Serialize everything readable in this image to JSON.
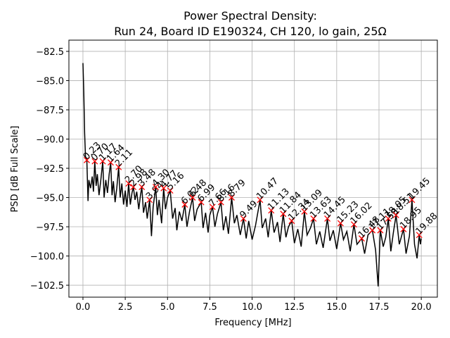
{
  "chart_data": {
    "type": "line",
    "title": [
      "Power Spectral Density:",
      "Run 24, Board ID E190324, CH 120, lo gain, 25Ω"
    ],
    "xlabel": "Frequency [MHz]",
    "ylabel": "PSD [dB Full Scale]",
    "xlim": [
      -0.83,
      20.95
    ],
    "ylim": [
      -103.52,
      -81.54
    ],
    "grid": true,
    "xticks": [
      {
        "value": 0,
        "label": "0.0"
      },
      2.5,
      {
        "value": 5,
        "label": "5.0"
      },
      7.5,
      {
        "value": 10,
        "label": "10.0"
      },
      12.5,
      {
        "value": 15,
        "label": "15.0"
      },
      17.5,
      {
        "value": 20,
        "label": "20.0"
      }
    ],
    "yticks": [
      {
        "value": -82.5,
        "label": "−82.5"
      },
      {
        "value": -85,
        "label": "−85.0"
      },
      {
        "value": -87.5,
        "label": "−87.5"
      },
      {
        "value": -90,
        "label": "−90.0"
      },
      {
        "value": -92.5,
        "label": "−92.5"
      },
      {
        "value": -95,
        "label": "−95.0"
      },
      {
        "value": -97.5,
        "label": "−97.5"
      },
      {
        "value": -100,
        "label": "−100.0"
      },
      {
        "value": -102.5,
        "label": "−102.5"
      }
    ],
    "series": [
      {
        "color": "#000000",
        "x": [
          0.0,
          0.05,
          0.1,
          0.15,
          0.23,
          0.3,
          0.35,
          0.45,
          0.55,
          0.62,
          0.7,
          0.78,
          0.85,
          0.95,
          1.05,
          1.17,
          1.25,
          1.35,
          1.45,
          1.55,
          1.64,
          1.72,
          1.8,
          1.9,
          2.0,
          2.11,
          2.2,
          2.3,
          2.4,
          2.5,
          2.6,
          2.7,
          2.8,
          2.9,
          2.98,
          3.08,
          3.18,
          3.3,
          3.4,
          3.48,
          3.58,
          3.7,
          3.8,
          3.94,
          4.05,
          4.15,
          4.3,
          4.4,
          4.5,
          4.65,
          4.77,
          4.88,
          5.0,
          5.16,
          5.3,
          5.45,
          5.55,
          5.7,
          5.85,
          6.02,
          6.15,
          6.3,
          6.48,
          6.6,
          6.75,
          6.99,
          7.1,
          7.25,
          7.4,
          7.5,
          7.66,
          7.8,
          7.95,
          8.16,
          8.3,
          8.45,
          8.6,
          8.79,
          8.95,
          9.1,
          9.3,
          9.49,
          9.65,
          9.8,
          10.0,
          10.2,
          10.47,
          10.6,
          10.8,
          10.95,
          11.13,
          11.3,
          11.5,
          11.65,
          11.84,
          12.0,
          12.15,
          12.34,
          12.5,
          12.7,
          12.9,
          13.09,
          13.25,
          13.45,
          13.63,
          13.8,
          14.0,
          14.2,
          14.45,
          14.6,
          14.8,
          15.0,
          15.23,
          15.4,
          15.6,
          15.8,
          16.02,
          16.2,
          16.48,
          16.65,
          16.85,
          17.11,
          17.3,
          17.45,
          17.58,
          17.75,
          17.9,
          18.05,
          18.2,
          18.35,
          18.51,
          18.7,
          18.95,
          19.1,
          19.3,
          19.45,
          19.6,
          19.75,
          19.88,
          19.95,
          20.0
        ],
        "values": [
          -83.5,
          -86.0,
          -89.5,
          -91.5,
          -91.8,
          -95.3,
          -93.5,
          -94.2,
          -93.2,
          -94.5,
          -91.9,
          -94.0,
          -93.0,
          -94.8,
          -93.6,
          -91.9,
          -95.0,
          -93.5,
          -94.6,
          -93.0,
          -92.0,
          -94.8,
          -93.6,
          -95.4,
          -94.2,
          -92.4,
          -95.0,
          -93.8,
          -95.6,
          -94.4,
          -95.8,
          -93.8,
          -95.6,
          -94.6,
          -94.1,
          -95.2,
          -94.5,
          -96.0,
          -94.8,
          -94.1,
          -96.3,
          -95.4,
          -96.8,
          -95.2,
          -98.3,
          -95.8,
          -94.1,
          -96.5,
          -95.2,
          -97.2,
          -94.2,
          -96.0,
          -95.0,
          -94.4,
          -96.8,
          -95.9,
          -97.8,
          -96.2,
          -97.0,
          -95.6,
          -97.5,
          -96.2,
          -95.0,
          -97.0,
          -96.0,
          -95.4,
          -97.6,
          -96.3,
          -98.0,
          -96.5,
          -95.8,
          -97.5,
          -96.4,
          -95.4,
          -97.8,
          -96.6,
          -98.1,
          -95.0,
          -97.2,
          -96.5,
          -98.2,
          -96.8,
          -98.5,
          -97.0,
          -98.6,
          -97.4,
          -95.2,
          -97.6,
          -96.8,
          -98.4,
          -96.1,
          -98.0,
          -97.1,
          -98.8,
          -96.4,
          -98.4,
          -97.5,
          -97.0,
          -98.9,
          -97.7,
          -99.2,
          -96.2,
          -98.2,
          -97.6,
          -96.8,
          -99.0,
          -97.9,
          -99.3,
          -96.8,
          -98.7,
          -97.8,
          -99.4,
          -97.2,
          -98.6,
          -97.9,
          -99.6,
          -97.3,
          -99.0,
          -98.5,
          -99.8,
          -98.2,
          -97.8,
          -99.5,
          -102.6,
          -97.8,
          -99.2,
          -98.4,
          -96.8,
          -99.6,
          -98.0,
          -96.5,
          -99.0,
          -97.7,
          -99.8,
          -98.3,
          -95.2,
          -99.0,
          -100.2,
          -98.2,
          -99.0,
          -98.5
        ]
      },
      {
        "color": "#ff0000",
        "x": [
          0.23,
          0.7,
          1.17,
          1.64,
          2.11,
          2.7,
          2.98,
          3.48,
          3.94,
          4.3,
          4.77,
          5.16,
          6.02,
          6.48,
          6.99,
          7.66,
          8.16,
          8.79,
          9.49,
          10.47,
          11.13,
          11.84,
          12.34,
          13.09,
          13.63,
          14.45,
          15.23,
          16.02,
          16.48,
          17.11,
          17.58,
          18.05,
          18.51,
          18.95,
          19.45,
          19.88
        ],
        "labels": [
          "0.23",
          "0.70",
          "1.17",
          "1.64",
          "2.11",
          "2.70",
          "2.98",
          "3.48",
          "3.94",
          "4.30",
          "4.77",
          "5.16",
          "6.02",
          "6.48",
          "6.99",
          "7.66",
          "8.16",
          "8.79",
          "9.49",
          "10.47",
          "11.13",
          "11.84",
          "12.34",
          "13.09",
          "13.63",
          "14.45",
          "15.23",
          "16.02",
          "16.48",
          "17.11",
          "17.58",
          "18.05",
          "18.51",
          "18.95",
          "19.45",
          "19.88"
        ],
        "values": [
          -91.8,
          -91.9,
          -91.9,
          -92.0,
          -92.4,
          -93.8,
          -94.1,
          -94.1,
          -95.2,
          -94.1,
          -94.2,
          -94.4,
          -95.6,
          -95.0,
          -95.4,
          -95.8,
          -95.4,
          -95.0,
          -96.8,
          -95.2,
          -96.1,
          -96.4,
          -97.0,
          -96.2,
          -96.8,
          -96.8,
          -97.2,
          -97.3,
          -98.5,
          -97.8,
          -97.8,
          -96.8,
          -96.5,
          -97.7,
          -95.2,
          -98.2
        ]
      }
    ]
  }
}
